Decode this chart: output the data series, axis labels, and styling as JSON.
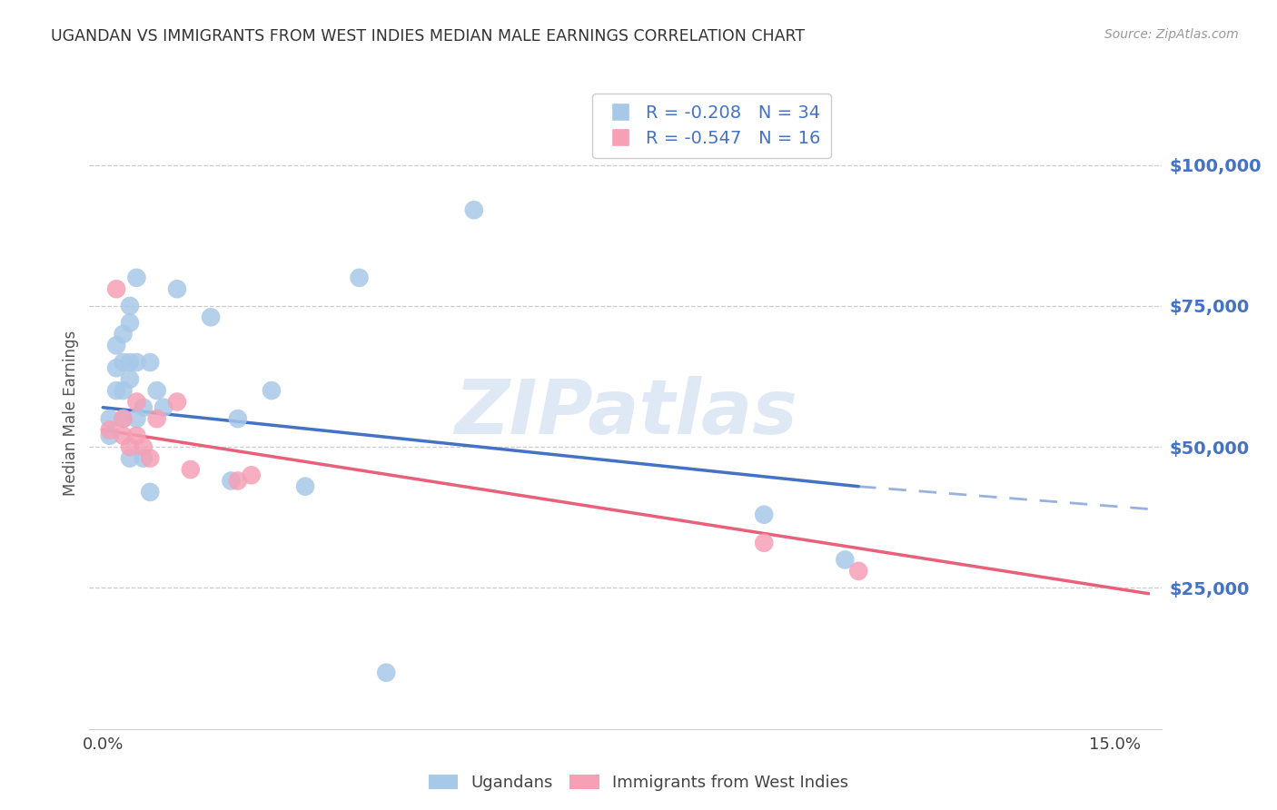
{
  "title": "UGANDAN VS IMMIGRANTS FROM WEST INDIES MEDIAN MALE EARNINGS CORRELATION CHART",
  "source": "Source: ZipAtlas.com",
  "ylabel": "Median Male Earnings",
  "watermark_zip": "ZIP",
  "watermark_atlas": "atlas",
  "ugandan_R": -0.208,
  "ugandan_N": 34,
  "westindies_R": -0.547,
  "westindies_N": 16,
  "ugandan_color": "#a8c8e8",
  "westindies_color": "#f5a0b5",
  "ugandan_line_color": "#4472c4",
  "westindies_line_color": "#e8607a",
  "right_axis_color": "#4472c4",
  "title_color": "#404040",
  "ylim": [
    0,
    112000
  ],
  "xlim": [
    -0.002,
    0.157
  ],
  "yticks": [
    0,
    25000,
    50000,
    75000,
    100000
  ],
  "xticks": [
    0.0,
    0.025,
    0.05,
    0.075,
    0.1,
    0.125,
    0.15
  ],
  "ugandan_x": [
    0.001,
    0.001,
    0.002,
    0.002,
    0.002,
    0.003,
    0.003,
    0.003,
    0.003,
    0.004,
    0.004,
    0.004,
    0.004,
    0.004,
    0.005,
    0.005,
    0.005,
    0.006,
    0.006,
    0.007,
    0.007,
    0.008,
    0.009,
    0.011,
    0.016,
    0.019,
    0.02,
    0.025,
    0.03,
    0.038,
    0.042,
    0.055,
    0.098,
    0.11
  ],
  "ugandan_y": [
    55000,
    52000,
    60000,
    64000,
    68000,
    65000,
    70000,
    60000,
    55000,
    75000,
    72000,
    65000,
    62000,
    48000,
    80000,
    65000,
    55000,
    57000,
    48000,
    65000,
    42000,
    60000,
    57000,
    78000,
    73000,
    44000,
    55000,
    60000,
    43000,
    80000,
    10000,
    92000,
    38000,
    30000
  ],
  "westindies_x": [
    0.001,
    0.002,
    0.003,
    0.003,
    0.004,
    0.005,
    0.005,
    0.006,
    0.007,
    0.008,
    0.011,
    0.013,
    0.02,
    0.022,
    0.098,
    0.112
  ],
  "westindies_y": [
    53000,
    78000,
    55000,
    52000,
    50000,
    58000,
    52000,
    50000,
    48000,
    55000,
    58000,
    46000,
    44000,
    45000,
    33000,
    28000
  ],
  "ug_line_x0": 0.0,
  "ug_line_x1": 0.112,
  "ug_line_x2": 0.155,
  "ug_line_y0": 57000,
  "ug_line_y1": 43000,
  "ug_line_y2": 39000,
  "wi_line_x0": 0.0,
  "wi_line_x1": 0.155,
  "wi_line_y0": 53000,
  "wi_line_y1": 24000
}
